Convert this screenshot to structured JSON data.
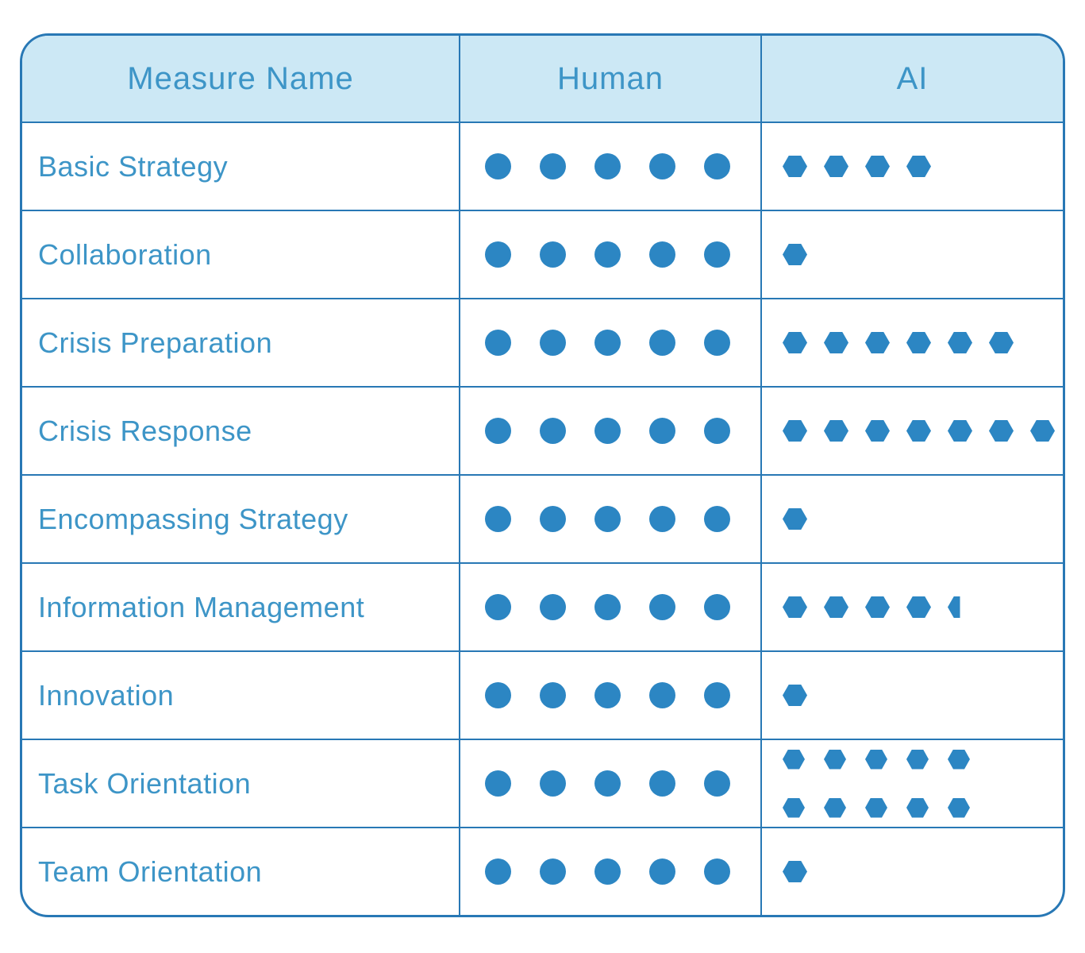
{
  "header": {
    "measure": "Measure Name",
    "human": "Human",
    "ai": "AI"
  },
  "colors": {
    "line": "#2878B5",
    "shape": "#2C86C3",
    "text": "#3D95C7",
    "header_bg": "#CCE8F5"
  },
  "markers": {
    "human_marker": "circle-dot-icon",
    "ai_marker": "hexagon-icon",
    "half_marker": "half-hexagon-icon"
  },
  "rows": [
    {
      "label": "Basic Strategy",
      "human": 5,
      "ai": 4
    },
    {
      "label": "Collaboration",
      "human": 5,
      "ai": 1
    },
    {
      "label": "Crisis Preparation",
      "human": 5,
      "ai": 6
    },
    {
      "label": "Crisis Response",
      "human": 5,
      "ai": 7
    },
    {
      "label": "Encompassing Strategy",
      "human": 5,
      "ai": 1
    },
    {
      "label": "Information Management",
      "human": 5,
      "ai": 4.5
    },
    {
      "label": "Innovation",
      "human": 5,
      "ai": 1
    },
    {
      "label": "Task Orientation",
      "human": 5,
      "ai": 10,
      "ai_two_rows": true
    },
    {
      "label": "Team Orientation",
      "human": 5,
      "ai": 1
    }
  ],
  "chart_data": {
    "type": "table",
    "title": "",
    "columns": [
      "Measure Name",
      "Human",
      "AI"
    ],
    "rows": [
      [
        "Basic Strategy",
        5,
        4
      ],
      [
        "Collaboration",
        5,
        1
      ],
      [
        "Crisis Preparation",
        5,
        6
      ],
      [
        "Crisis Response",
        5,
        7
      ],
      [
        "Encompassing Strategy",
        5,
        1
      ],
      [
        "Information Management",
        5,
        4.5
      ],
      [
        "Innovation",
        5,
        1
      ],
      [
        "Task Orientation",
        5,
        10
      ],
      [
        "Team Orientation",
        5,
        1
      ]
    ],
    "value_encoding": "pictogram counts: Human shown as filled circles, AI shown as filled hexagons; 0.5 shown as left half hexagon",
    "value_range": [
      0,
      10
    ]
  }
}
